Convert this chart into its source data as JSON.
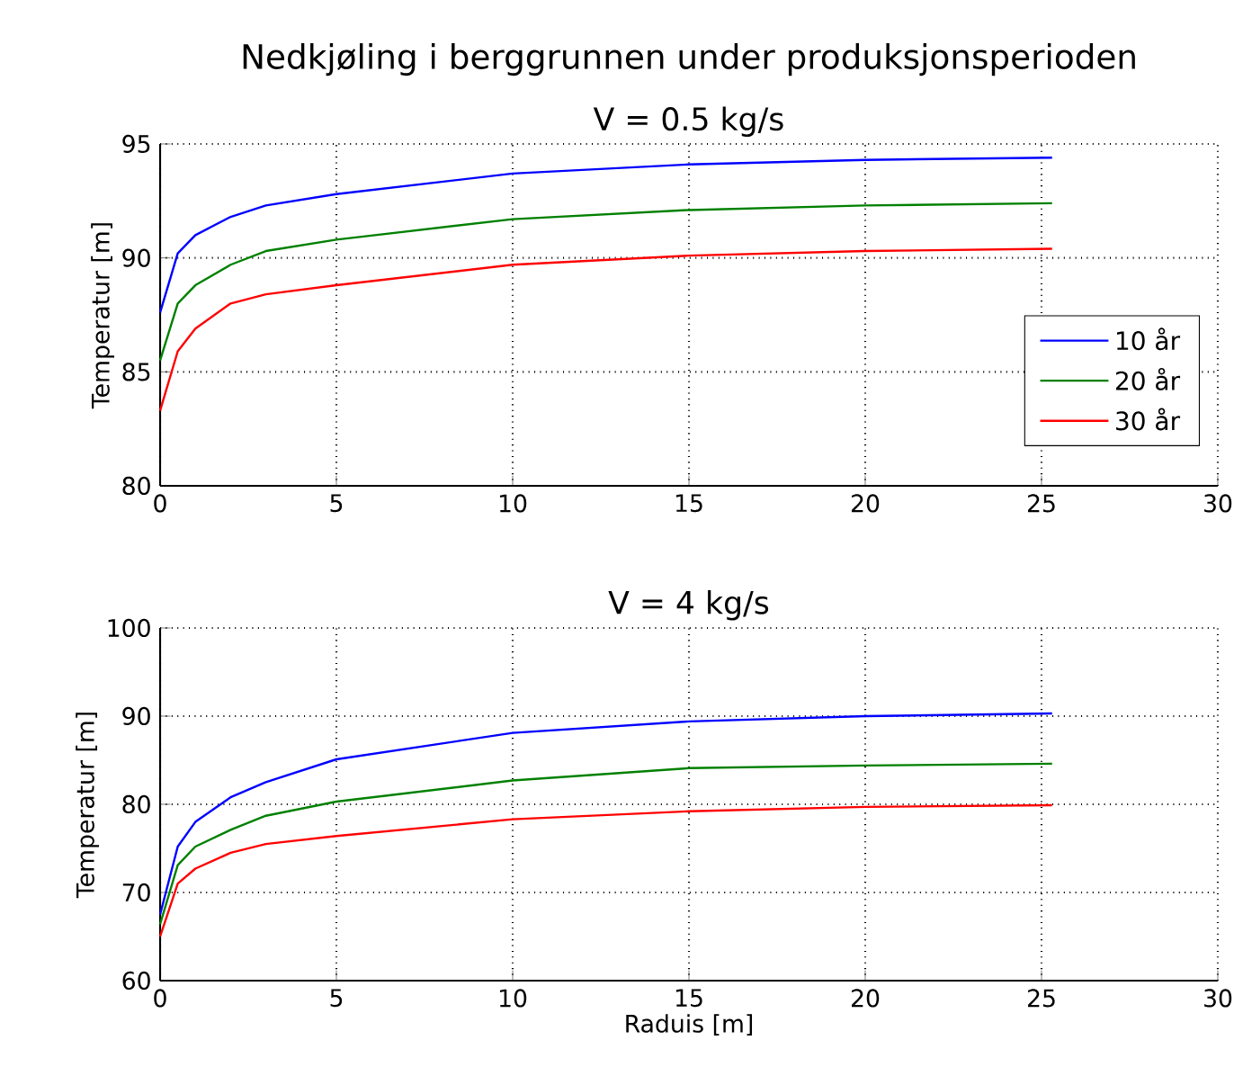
{
  "chart_data": [
    {
      "type": "line",
      "title": "Nedkjøling i berggrunnen under produksjonsperioden",
      "subtitle": "V = 0.5 kg/s",
      "ylabel": "Temperatur [m]",
      "x": [
        0,
        0.5,
        1,
        2,
        3,
        5,
        10,
        15,
        20,
        25.3
      ],
      "series": [
        {
          "name": "10 år",
          "color": "#0000ff",
          "values": [
            87.6,
            90.2,
            91.0,
            91.8,
            92.3,
            92.8,
            93.7,
            94.1,
            94.3,
            94.4
          ]
        },
        {
          "name": "20 år",
          "color": "#008000",
          "values": [
            85.5,
            88.0,
            88.8,
            89.7,
            90.3,
            90.8,
            91.7,
            92.1,
            92.3,
            92.4
          ]
        },
        {
          "name": "30 år",
          "color": "#ff0000",
          "values": [
            83.3,
            85.9,
            86.9,
            88.0,
            88.4,
            88.8,
            89.7,
            90.1,
            90.3,
            90.4
          ]
        }
      ],
      "xlim": [
        0,
        30
      ],
      "xticks": [
        0,
        5,
        10,
        15,
        20,
        25,
        30
      ],
      "ylim": [
        80,
        95
      ],
      "yticks": [
        80,
        85,
        90,
        95
      ],
      "grid": true,
      "legend": "bottom right",
      "line_style": "solid"
    },
    {
      "type": "line",
      "title": "V = 4 kg/s",
      "xlabel": "Raduis [m]",
      "ylabel": "Temperatur [m]",
      "x": [
        0,
        0.5,
        1,
        2,
        3,
        5,
        10,
        15,
        20,
        25.3
      ],
      "series": [
        {
          "color": "#0000ff",
          "values": [
            67.5,
            75.2,
            78.0,
            80.8,
            82.5,
            85.1,
            88.1,
            89.4,
            90.0,
            90.3
          ]
        },
        {
          "color": "#008000",
          "values": [
            66.4,
            73.1,
            75.2,
            77.1,
            78.7,
            80.3,
            82.7,
            84.1,
            84.4,
            84.6
          ]
        },
        {
          "color": "#ff0000",
          "values": [
            65.0,
            71.0,
            72.7,
            74.5,
            75.5,
            76.4,
            78.3,
            79.2,
            79.7,
            79.9
          ]
        }
      ],
      "xlim": [
        0,
        30
      ],
      "xticks": [
        0,
        5,
        10,
        15,
        20,
        25,
        30
      ],
      "ylim": [
        60,
        100
      ],
      "yticks": [
        60,
        70,
        80,
        90,
        100
      ],
      "grid": true,
      "legend": false,
      "line_style": "solid"
    }
  ]
}
